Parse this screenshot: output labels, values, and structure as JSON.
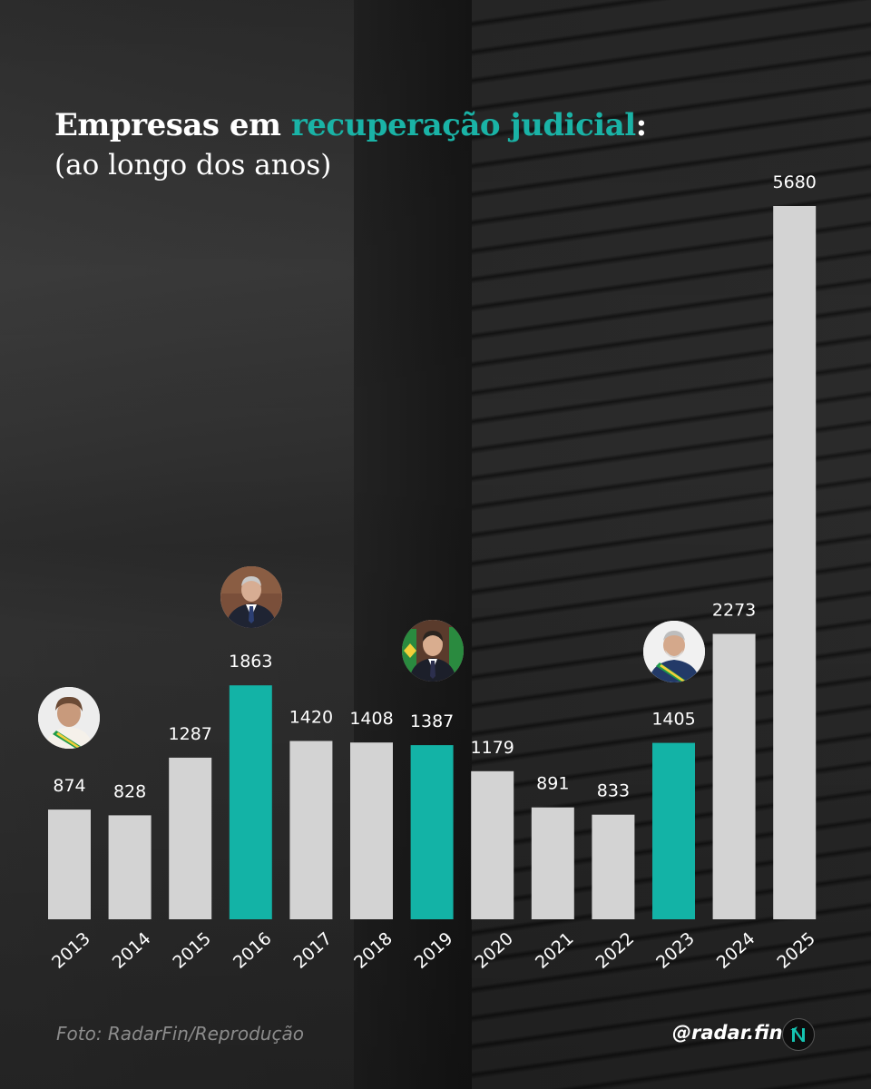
{
  "header": {
    "title_main": "Empresas em ",
    "title_accent": "recuperação judicial",
    "title_colon": ":",
    "subtitle": "(ao longo dos anos)"
  },
  "colors": {
    "default_bar": "#d3d3d3",
    "highlight_bar": "#13b3a6",
    "accent_text": "#1ab3a6",
    "label_text": "#ffffff"
  },
  "chart_data": {
    "type": "bar",
    "title": "Empresas em recuperação judicial:",
    "subtitle": "(ao longo dos anos)",
    "xlabel": "",
    "ylabel": "",
    "ylim": [
      0,
      6000
    ],
    "grid": false,
    "legend": "none",
    "categories": [
      "2013",
      "2014",
      "2015",
      "2016",
      "2017",
      "2018",
      "2019",
      "2020",
      "2021",
      "2022",
      "2023",
      "2024",
      "2025"
    ],
    "values": [
      874,
      828,
      1287,
      1863,
      1420,
      1408,
      1387,
      1179,
      891,
      833,
      1405,
      2273,
      5680
    ],
    "value_labels": [
      "874",
      "828",
      "1287",
      "1863",
      "1420",
      "1408",
      "1387",
      "1179",
      "891",
      "833",
      "1405",
      "2273",
      "5680"
    ],
    "highlighted": [
      "2016",
      "2019",
      "2023"
    ],
    "president_markers": [
      "2013",
      "2016",
      "2019",
      "2023"
    ]
  },
  "footer": {
    "credit": "Foto: RadarFin/Reprodução",
    "handle": "@radar.fin",
    "logo_icon": "radar-fin-logo-icon"
  }
}
